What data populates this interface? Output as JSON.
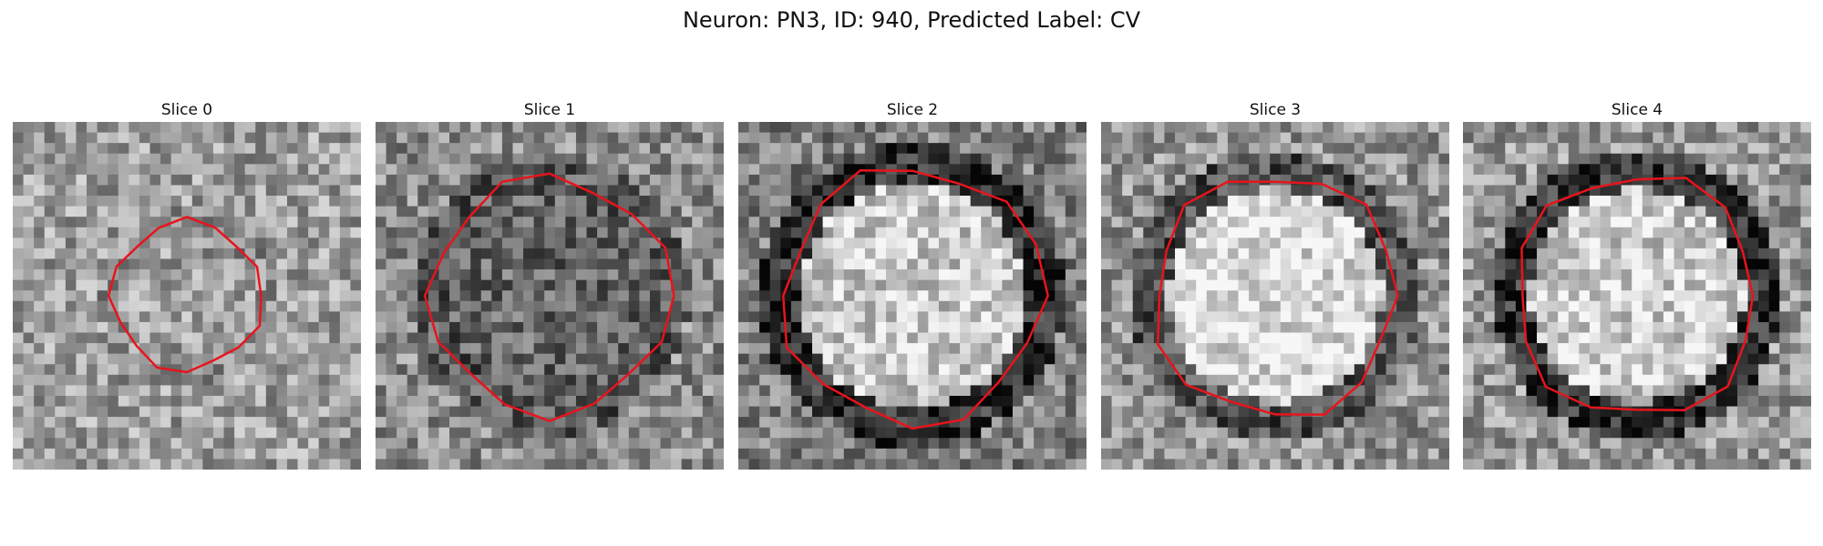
{
  "figure": {
    "title": "Neuron: PN3, ID: 940, Predicted Label: CV"
  },
  "panels": [
    {
      "title": "Slice 0",
      "seed": 11,
      "center_brightness": 0.62,
      "rim_darkness": 0.0,
      "contour_radius": 0.22,
      "outside_base": 0.62
    },
    {
      "title": "Slice 1",
      "seed": 23,
      "center_brightness": 0.4,
      "rim_darkness": 0.0,
      "contour_radius": 0.35,
      "outside_base": 0.55
    },
    {
      "title": "Slice 2",
      "seed": 37,
      "center_brightness": 0.78,
      "rim_darkness": 0.55,
      "contour_radius": 0.38,
      "outside_base": 0.5
    },
    {
      "title": "Slice 3",
      "seed": 51,
      "center_brightness": 0.86,
      "rim_darkness": 0.5,
      "contour_radius": 0.36,
      "outside_base": 0.58
    },
    {
      "title": "Slice 4",
      "seed": 67,
      "center_brightness": 0.8,
      "rim_darkness": 0.55,
      "contour_radius": 0.36,
      "outside_base": 0.6
    }
  ],
  "colors": {
    "contour": "#e8141c",
    "background": "#ffffff"
  }
}
